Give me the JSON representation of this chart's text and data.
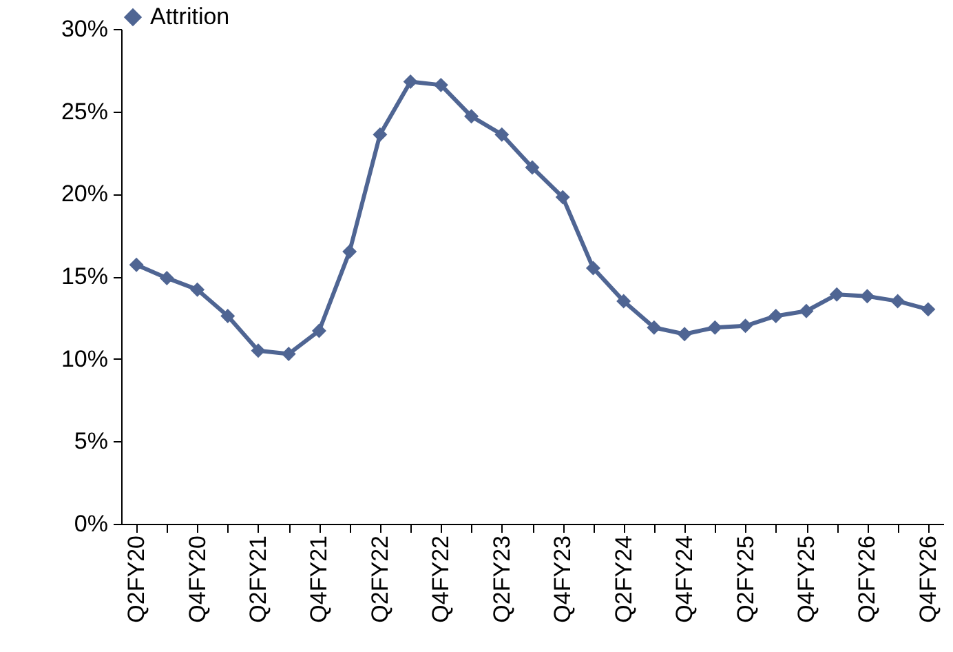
{
  "chart_data": {
    "type": "line",
    "categories": [
      "Q2FY20",
      null,
      "Q4FY20",
      null,
      "Q2FY21",
      null,
      "Q4FY21",
      null,
      "Q2FY22",
      null,
      "Q4FY22",
      null,
      "Q2FY23",
      null,
      "Q4FY23",
      null,
      "Q2FY24",
      null,
      "Q4FY24",
      null,
      "Q2FY25",
      null,
      "Q4FY25",
      null,
      "Q2FY26",
      null,
      "Q4FY26"
    ],
    "series": [
      {
        "name": "Attrition",
        "color": "#4f6593",
        "values": [
          15.7,
          14.9,
          14.2,
          12.6,
          10.5,
          10.3,
          11.7,
          16.5,
          23.6,
          26.8,
          26.6,
          24.7,
          23.6,
          21.6,
          19.8,
          15.5,
          13.5,
          11.9,
          11.5,
          11.9,
          12.0,
          12.6,
          12.9,
          13.9,
          13.8,
          13.5,
          13.0
        ]
      }
    ],
    "ylim": [
      0,
      30
    ],
    "yticks": [
      {
        "value": 0,
        "label": "0%"
      },
      {
        "value": 5,
        "label": "5%"
      },
      {
        "value": 10,
        "label": "10%"
      },
      {
        "value": 15,
        "label": "15%"
      },
      {
        "value": 20,
        "label": "20%"
      },
      {
        "value": 25,
        "label": "25%"
      },
      {
        "value": 30,
        "label": "30%"
      }
    ],
    "legend": "top",
    "marker": "diamond",
    "grid": false,
    "line_style": "solid"
  }
}
